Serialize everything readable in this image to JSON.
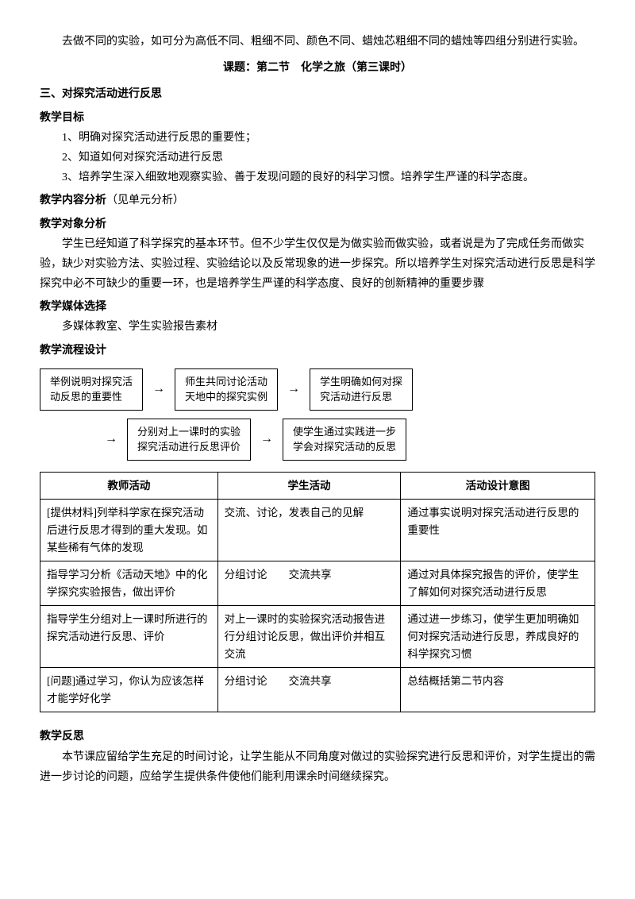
{
  "intro": "去做不同的实验，如可分为高低不同、粗细不同、颜色不同、蜡烛芯粗细不同的蜡烛等四组分别进行实验。",
  "title": "课题：第二节　化学之旅（第三课时）",
  "section3": "三、对探究活动进行反思",
  "objectives": {
    "heading": "教学目标",
    "items": [
      "1、明确对探究活动进行反思的重要性；",
      "2、知道如何对探究活动进行反思",
      "3、培养学生深入细致地观察实验、善于发现问题的良好的科学习惯。培养学生严谨的科学态度。"
    ]
  },
  "content_analysis": {
    "heading": "教学内容分析",
    "note": "（见单元分析）"
  },
  "audience_analysis": {
    "heading": "教学对象分析",
    "body": "学生已经知道了科学探究的基本环节。但不少学生仅仅是为做实验而做实验，或者说是为了完成任务而做实验，缺少对实验方法、实验过程、实验结论以及反常现象的进一步探究。所以培养学生对探究活动进行反思是科学探究中必不可缺少的重要一环，也是培养学生严谨的科学态度、良好的创新精神的重要步骤"
  },
  "media": {
    "heading": "教学媒体选择",
    "body": "多媒体教室、学生实验报告素材"
  },
  "flow": {
    "heading": "教学流程设计",
    "boxes": [
      "举例说明对探究活\n动反思的重要性",
      "师生共同讨论活动\n天地中的探究实例",
      "学生明确如何对探\n究活动进行反思",
      "分别对上一课时的实验\n探究活动进行反思评价",
      "使学生通过实践进一步\n学会对探究活动的反思"
    ],
    "arrow": "→"
  },
  "table": {
    "headers": [
      "教师活动",
      "学生活动",
      "活动设计意图"
    ],
    "rows": [
      [
        "[提供材料]列举科学家在探究活动后进行反思才得到的重大发现。如某些稀有气体的发现",
        "交流、讨论，发表自己的见解",
        "通过事实说明对探究活动进行反思的重要性"
      ],
      [
        "指导学习分析《活动天地》中的化学探究实验报告，做出评价",
        "分组讨论　　交流共享",
        "通过对具体探究报告的评价，使学生了解如何对探究活动进行反思"
      ],
      [
        "指导学生分组对上一课时所进行的探究活动进行反思、评价",
        "对上一课时的实验探究活动报告进行分组讨论反思，做出评价并相互交流",
        "通过进一步练习，使学生更加明确如何对探究活动进行反思，养成良好的科学探究习惯"
      ],
      [
        "[问题]通过学习，你认为应该怎样才能学好化学",
        "分组讨论　　交流共享",
        "总结概括第二节内容"
      ]
    ]
  },
  "reflection": {
    "heading": "教学反思",
    "body": "本节课应留给学生充足的时间讨论，让学生能从不同角度对做过的实验探究进行反思和评价，对学生提出的需进一步讨论的问题，应给学生提供条件使他们能利用课余时间继续探究。"
  }
}
